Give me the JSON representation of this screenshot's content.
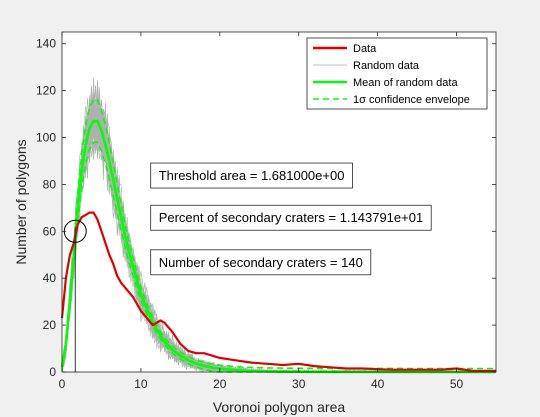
{
  "chart_data": {
    "type": "line",
    "title": "",
    "xlabel": "Voronoi polygon area",
    "ylabel": "Number of polygons",
    "xlim": [
      0,
      55
    ],
    "ylim": [
      0,
      145
    ],
    "xticks": [
      0,
      10,
      20,
      30,
      40,
      50
    ],
    "yticks": [
      0,
      20,
      40,
      60,
      80,
      100,
      120,
      140
    ],
    "grid": false,
    "legend_position": "top-right",
    "legend": [
      {
        "label": "Data",
        "color": "#e00000",
        "style": "solid-thick"
      },
      {
        "label": "Random data",
        "color": "#a8a8a8",
        "style": "solid-thin"
      },
      {
        "label": "Mean of random data",
        "color": "#00ff00",
        "style": "solid-thick"
      },
      {
        "label": "1σ confidence envelope",
        "color": "#00ff00",
        "style": "dashed"
      }
    ],
    "series": [
      {
        "name": "Data",
        "color": "#e00000",
        "x": [
          0,
          0.5,
          1,
          1.5,
          2,
          2.5,
          3,
          3.5,
          4,
          4.5,
          5,
          5.5,
          6,
          6.5,
          7,
          7.5,
          8,
          8.5,
          9,
          9.5,
          10,
          10.5,
          11,
          11.5,
          12,
          12.5,
          13,
          13.5,
          14,
          15,
          16,
          17,
          18,
          19,
          20,
          22,
          24,
          26,
          28,
          30,
          32,
          34,
          36,
          38,
          40,
          42,
          44,
          46,
          48,
          50,
          52,
          54,
          55
        ],
        "y": [
          23,
          40,
          50,
          55,
          63,
          66,
          67,
          68,
          68,
          65,
          60,
          55,
          50,
          46,
          41,
          38,
          36,
          34,
          32,
          29,
          26,
          24,
          22,
          20,
          21,
          22,
          21,
          19,
          17,
          12,
          9,
          8,
          8,
          7,
          6,
          5,
          4,
          3.5,
          3,
          3.5,
          2.5,
          2,
          1.5,
          1.5,
          1.2,
          1,
          1,
          1,
          1,
          1.5,
          0.5,
          0.5,
          0.5
        ]
      },
      {
        "name": "Mean of random data",
        "color": "#00ff00",
        "x": [
          0,
          0.5,
          1,
          1.5,
          2,
          2.5,
          3,
          3.5,
          4,
          4.5,
          5,
          5.5,
          6,
          6.5,
          7,
          7.5,
          8,
          8.5,
          9,
          9.5,
          10,
          11,
          12,
          13,
          14,
          15,
          16,
          17,
          18,
          19,
          20,
          22,
          24,
          26,
          28,
          30,
          35,
          40,
          45,
          50,
          55
        ],
        "y": [
          2,
          12,
          30,
          50,
          70,
          86,
          97,
          104,
          107,
          107,
          103,
          97,
          90,
          82,
          74,
          66,
          58,
          51,
          45,
          39,
          33,
          25,
          18,
          13,
          9.5,
          7,
          5,
          3.6,
          2.6,
          1.9,
          1.4,
          0.8,
          0.4,
          0.25,
          0.15,
          0.1,
          0.05,
          0.02,
          0.01,
          0,
          0
        ]
      }
    ],
    "confidence_envelope": {
      "name": "1σ confidence envelope",
      "half_width_fraction": 0.085,
      "min_half_width": 1.5
    },
    "random_data_lines": 40,
    "vertical_line": {
      "x": 1.681,
      "y_top": 62
    },
    "circle_marker": {
      "x": 1.681,
      "y": 60
    },
    "annotations": [
      {
        "text": "Threshold area = 1.681000e+00",
        "x": 12,
        "y": 84
      },
      {
        "text": "Percent of secondary craters = 1.143791e+01",
        "x": 12,
        "y": 66
      },
      {
        "text": "Number of secondary craters = 140",
        "x": 12,
        "y": 47
      }
    ]
  }
}
